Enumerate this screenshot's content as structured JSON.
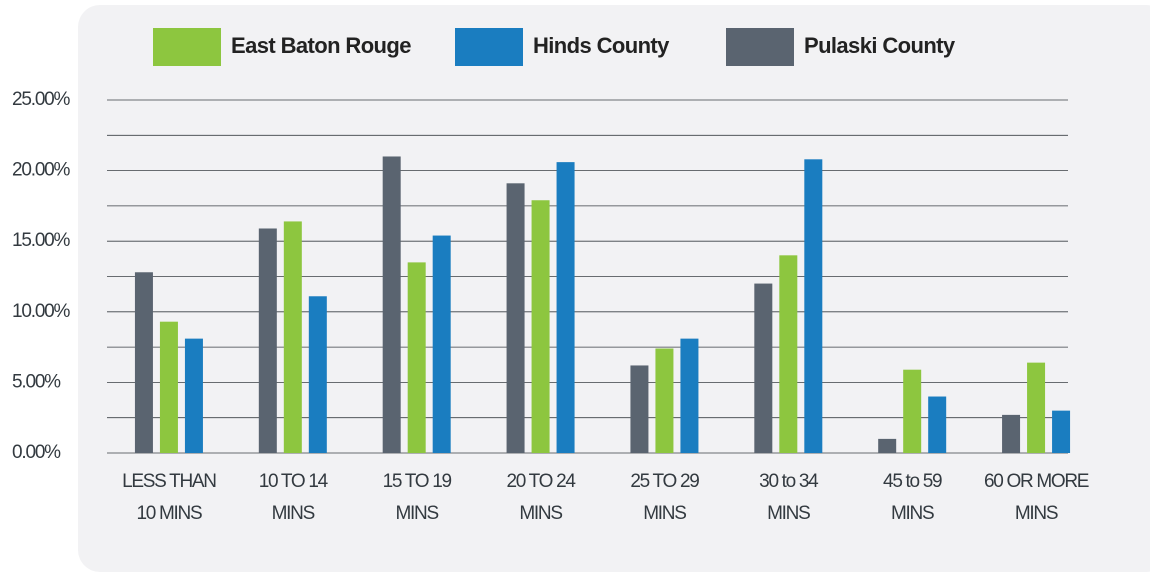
{
  "chart_data": {
    "type": "bar",
    "categories": [
      [
        "LESS THAN",
        "10 MINS"
      ],
      [
        "10 TO 14",
        "MINS"
      ],
      [
        "15 TO 19",
        "MINS"
      ],
      [
        "20 TO 24",
        "MINS"
      ],
      [
        "25 TO 29",
        "MINS"
      ],
      [
        "30 to 34",
        "MINS"
      ],
      [
        "45 to 59",
        "MINS"
      ],
      [
        "60 OR MORE",
        "MINS"
      ]
    ],
    "series": [
      {
        "name": "East Baton Rouge",
        "color": "#8dc63f",
        "values": [
          9.3,
          16.4,
          13.5,
          17.9,
          7.4,
          14.0,
          5.9,
          6.4
        ]
      },
      {
        "name": "Hinds County",
        "color": "#1a7dc0",
        "values": [
          8.1,
          11.1,
          15.4,
          20.6,
          8.1,
          20.8,
          4.0,
          3.0
        ]
      },
      {
        "name": "Pulaski County",
        "color": "#5a6470",
        "values": [
          12.8,
          15.9,
          21.0,
          19.1,
          6.2,
          12.0,
          1.0,
          2.7
        ]
      }
    ],
    "ylim": [
      0,
      25
    ],
    "yticks": [
      {
        "value": 0,
        "label": "0.00%"
      },
      {
        "value": 5,
        "label": "5.00%"
      },
      {
        "value": 10,
        "label": "10.00%"
      },
      {
        "value": 15,
        "label": "15.00%"
      },
      {
        "value": 20,
        "label": "20.00%"
      },
      {
        "value": 25,
        "label": "25.00%"
      }
    ],
    "minor_yticks": [
      2.5,
      7.5,
      12.5,
      17.5,
      22.5
    ],
    "grid": true,
    "legend": "top"
  }
}
